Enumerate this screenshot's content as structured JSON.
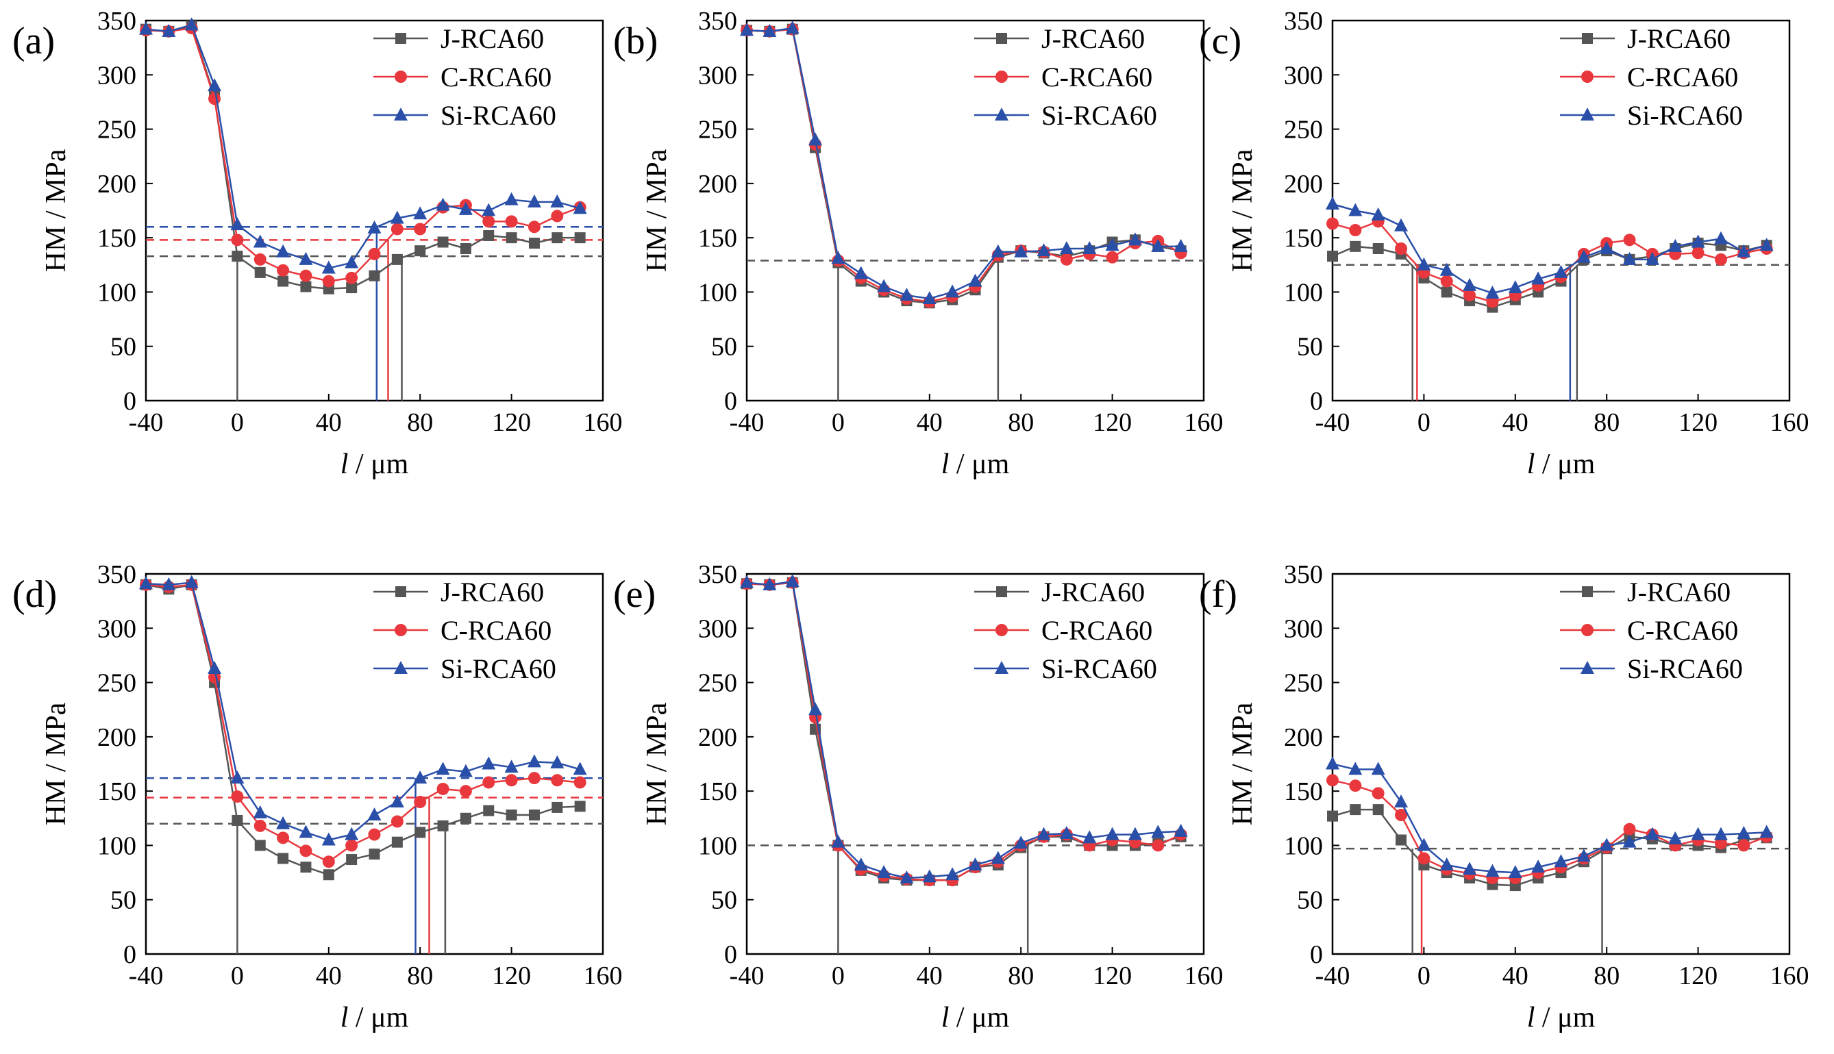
{
  "figure": {
    "series_colors": {
      "J-RCA60": "#555555",
      "C-RCA60": "#e8383d",
      "Si-RCA60": "#2a4fa8"
    },
    "legend": [
      "J-RCA60",
      "C-RCA60",
      "Si-RCA60"
    ]
  },
  "chart_data": [
    {
      "type": "line",
      "panel_label": "(a)",
      "xlabel_italic": "l",
      "xlabel_unit": " / μm",
      "ylabel": "HM / MPa",
      "xlim": [
        -40,
        160
      ],
      "ylim": [
        0,
        350
      ],
      "xticks": [
        -40,
        0,
        40,
        80,
        120,
        160
      ],
      "yticks": [
        0,
        50,
        100,
        150,
        200,
        250,
        300,
        350
      ],
      "x": [
        -40,
        -30,
        -20,
        -10,
        0,
        10,
        20,
        30,
        40,
        50,
        60,
        70,
        80,
        90,
        100,
        110,
        120,
        130,
        140,
        150
      ],
      "series": [
        {
          "name": "J-RCA60",
          "marker": "square",
          "values": [
            342,
            340,
            345,
            280,
            133,
            118,
            110,
            105,
            103,
            104,
            115,
            130,
            138,
            146,
            140,
            152,
            150,
            145,
            150,
            150
          ]
        },
        {
          "name": "C-RCA60",
          "marker": "circle",
          "values": [
            341,
            340,
            343,
            278,
            148,
            130,
            120,
            115,
            110,
            113,
            135,
            158,
            158,
            178,
            180,
            165,
            165,
            160,
            170,
            178
          ]
        },
        {
          "name": "Si-RCA60",
          "marker": "triangle",
          "values": [
            342,
            340,
            346,
            290,
            162,
            146,
            137,
            130,
            122,
            127,
            159,
            168,
            172,
            180,
            176,
            175,
            185,
            183,
            183,
            177
          ]
        }
      ],
      "hlines": [
        {
          "series": "J-RCA60",
          "y": 133
        },
        {
          "series": "C-RCA60",
          "y": 148
        },
        {
          "series": "Si-RCA60",
          "y": 160
        }
      ],
      "vlines": [
        {
          "series": "J-RCA60",
          "x": 0,
          "top": 133
        },
        {
          "series": "Si-RCA60",
          "x": 61,
          "top": 160
        },
        {
          "series": "C-RCA60",
          "x": 66,
          "top": 148
        },
        {
          "series": "J-RCA60",
          "x": 72,
          "top": 133
        }
      ]
    },
    {
      "type": "line",
      "panel_label": "(b)",
      "xlabel_italic": "l",
      "xlabel_unit": " / μm",
      "ylabel": "HM / MPa",
      "xlim": [
        -40,
        160
      ],
      "ylim": [
        0,
        350
      ],
      "xticks": [
        -40,
        0,
        40,
        80,
        120,
        160
      ],
      "yticks": [
        0,
        50,
        100,
        150,
        200,
        250,
        300,
        350
      ],
      "x": [
        -40,
        -30,
        -20,
        -10,
        0,
        10,
        20,
        30,
        40,
        50,
        60,
        70,
        80,
        90,
        100,
        110,
        120,
        130,
        140,
        150
      ],
      "series": [
        {
          "name": "J-RCA60",
          "marker": "square",
          "values": [
            341,
            340,
            342,
            233,
            127,
            110,
            100,
            92,
            90,
            93,
            102,
            132,
            138,
            136,
            133,
            138,
            146,
            148,
            142,
            138
          ]
        },
        {
          "name": "C-RCA60",
          "marker": "circle",
          "values": [
            341,
            340,
            342,
            236,
            129,
            113,
            102,
            94,
            91,
            96,
            105,
            134,
            138,
            137,
            130,
            135,
            132,
            145,
            147,
            136
          ]
        },
        {
          "name": "Si-RCA60",
          "marker": "triangle",
          "values": [
            341,
            340,
            343,
            240,
            131,
            117,
            105,
            97,
            94,
            100,
            110,
            137,
            137,
            138,
            140,
            140,
            143,
            148,
            142,
            142
          ]
        }
      ],
      "hlines": [
        {
          "series": "J-RCA60",
          "y": 129
        }
      ],
      "vlines": [
        {
          "series": "J-RCA60",
          "x": 0,
          "top": 129
        },
        {
          "series": "J-RCA60",
          "x": 70,
          "top": 129
        }
      ]
    },
    {
      "type": "line",
      "panel_label": "(c)",
      "xlabel_italic": "l",
      "xlabel_unit": " / μm",
      "ylabel": "HM / MPa",
      "xlim": [
        -40,
        160
      ],
      "ylim": [
        0,
        350
      ],
      "xticks": [
        -40,
        0,
        40,
        80,
        120,
        160
      ],
      "yticks": [
        0,
        50,
        100,
        150,
        200,
        250,
        300,
        350
      ],
      "x": [
        -40,
        -30,
        -20,
        -10,
        0,
        10,
        20,
        30,
        40,
        50,
        60,
        70,
        80,
        90,
        100,
        110,
        120,
        130,
        140,
        150
      ],
      "series": [
        {
          "name": "J-RCA60",
          "marker": "square",
          "values": [
            133,
            142,
            140,
            135,
            113,
            100,
            92,
            86,
            93,
            100,
            110,
            130,
            138,
            130,
            133,
            140,
            145,
            143,
            138,
            143
          ]
        },
        {
          "name": "C-RCA60",
          "marker": "circle",
          "values": [
            163,
            157,
            165,
            140,
            118,
            110,
            97,
            91,
            97,
            106,
            114,
            135,
            145,
            148,
            135,
            135,
            136,
            130,
            136,
            140
          ]
        },
        {
          "name": "Si-RCA60",
          "marker": "triangle",
          "values": [
            181,
            175,
            171,
            161,
            125,
            120,
            106,
            99,
            104,
            112,
            118,
            132,
            140,
            130,
            130,
            142,
            146,
            149,
            137,
            143
          ]
        }
      ],
      "hlines": [
        {
          "series": "J-RCA60",
          "y": 125
        }
      ],
      "vlines": [
        {
          "series": "J-RCA60",
          "x": -5,
          "top": 125
        },
        {
          "series": "C-RCA60",
          "x": -3,
          "top": 125
        },
        {
          "series": "Si-RCA60",
          "x": 64,
          "top": 125
        },
        {
          "series": "J-RCA60",
          "x": 67,
          "top": 125
        }
      ]
    },
    {
      "type": "line",
      "panel_label": "(d)",
      "xlabel_italic": "l",
      "xlabel_unit": " / μm",
      "ylabel": "HM / MPa",
      "xlim": [
        -40,
        160
      ],
      "ylim": [
        0,
        350
      ],
      "xticks": [
        -40,
        0,
        40,
        80,
        120,
        160
      ],
      "yticks": [
        0,
        50,
        100,
        150,
        200,
        250,
        300,
        350
      ],
      "x": [
        -40,
        -30,
        -20,
        -10,
        0,
        10,
        20,
        30,
        40,
        50,
        60,
        70,
        80,
        90,
        100,
        110,
        120,
        130,
        140,
        150
      ],
      "series": [
        {
          "name": "J-RCA60",
          "marker": "square",
          "values": [
            340,
            336,
            340,
            250,
            123,
            100,
            88,
            80,
            73,
            87,
            92,
            103,
            112,
            118,
            125,
            132,
            128,
            128,
            135,
            136
          ]
        },
        {
          "name": "C-RCA60",
          "marker": "circle",
          "values": [
            340,
            338,
            340,
            255,
            145,
            118,
            107,
            95,
            85,
            100,
            110,
            122,
            140,
            152,
            150,
            158,
            160,
            162,
            160,
            158
          ]
        },
        {
          "name": "Si-RCA60",
          "marker": "triangle",
          "values": [
            341,
            340,
            342,
            263,
            162,
            130,
            120,
            112,
            105,
            110,
            128,
            140,
            162,
            170,
            168,
            175,
            172,
            177,
            176,
            170
          ]
        }
      ],
      "hlines": [
        {
          "series": "J-RCA60",
          "y": 120
        },
        {
          "series": "C-RCA60",
          "y": 144
        },
        {
          "series": "Si-RCA60",
          "y": 162
        }
      ],
      "vlines": [
        {
          "series": "J-RCA60",
          "x": 0,
          "top": 120
        },
        {
          "series": "Si-RCA60",
          "x": 78,
          "top": 162
        },
        {
          "series": "C-RCA60",
          "x": 84,
          "top": 144
        },
        {
          "series": "J-RCA60",
          "x": 91,
          "top": 120
        }
      ]
    },
    {
      "type": "line",
      "panel_label": "(e)",
      "xlabel_italic": "l",
      "xlabel_unit": " / μm",
      "ylabel": "HM / MPa",
      "xlim": [
        -40,
        160
      ],
      "ylim": [
        0,
        350
      ],
      "xticks": [
        -40,
        0,
        40,
        80,
        120,
        160
      ],
      "yticks": [
        0,
        50,
        100,
        150,
        200,
        250,
        300,
        350
      ],
      "x": [
        -40,
        -30,
        -20,
        -10,
        0,
        10,
        20,
        30,
        40,
        50,
        60,
        70,
        80,
        90,
        100,
        110,
        120,
        130,
        140,
        150
      ],
      "series": [
        {
          "name": "J-RCA60",
          "marker": "square",
          "values": [
            341,
            340,
            342,
            207,
            100,
            77,
            70,
            68,
            68,
            68,
            80,
            82,
            98,
            108,
            108,
            100,
            100,
            100,
            102,
            108
          ]
        },
        {
          "name": "C-RCA60",
          "marker": "circle",
          "values": [
            341,
            340,
            342,
            218,
            100,
            78,
            72,
            69,
            68,
            68,
            80,
            85,
            100,
            108,
            110,
            100,
            105,
            103,
            100,
            110
          ]
        },
        {
          "name": "Si-RCA60",
          "marker": "triangle",
          "values": [
            342,
            340,
            343,
            225,
            103,
            82,
            75,
            70,
            71,
            73,
            82,
            88,
            102,
            110,
            111,
            107,
            110,
            110,
            112,
            113
          ]
        }
      ],
      "hlines": [
        {
          "series": "J-RCA60",
          "y": 100
        }
      ],
      "vlines": [
        {
          "series": "J-RCA60",
          "x": 0,
          "top": 100
        },
        {
          "series": "J-RCA60",
          "x": 83,
          "top": 100
        }
      ]
    },
    {
      "type": "line",
      "panel_label": "(f)",
      "xlabel_italic": "l",
      "xlabel_unit": " / μm",
      "ylabel": "HM / MPa",
      "xlim": [
        -40,
        160
      ],
      "ylim": [
        0,
        350
      ],
      "xticks": [
        -40,
        0,
        40,
        80,
        120,
        160
      ],
      "yticks": [
        0,
        50,
        100,
        150,
        200,
        250,
        300,
        350
      ],
      "x": [
        -40,
        -30,
        -20,
        -10,
        0,
        10,
        20,
        30,
        40,
        50,
        60,
        70,
        80,
        90,
        100,
        110,
        120,
        130,
        140,
        150
      ],
      "series": [
        {
          "name": "J-RCA60",
          "marker": "square",
          "values": [
            127,
            133,
            133,
            105,
            82,
            75,
            70,
            64,
            63,
            70,
            75,
            85,
            97,
            108,
            106,
            100,
            100,
            98,
            105,
            107
          ]
        },
        {
          "name": "C-RCA60",
          "marker": "circle",
          "values": [
            160,
            155,
            148,
            128,
            88,
            78,
            74,
            70,
            70,
            75,
            80,
            88,
            98,
            115,
            110,
            100,
            105,
            102,
            100,
            108
          ]
        },
        {
          "name": "Si-RCA60",
          "marker": "triangle",
          "values": [
            175,
            170,
            170,
            140,
            100,
            82,
            78,
            76,
            75,
            80,
            85,
            90,
            100,
            103,
            110,
            106,
            110,
            110,
            111,
            112
          ]
        }
      ],
      "hlines": [
        {
          "series": "J-RCA60",
          "y": 97
        }
      ],
      "vlines": [
        {
          "series": "J-RCA60",
          "x": -5,
          "top": 97
        },
        {
          "series": "C-RCA60",
          "x": -1,
          "top": 97
        },
        {
          "series": "J-RCA60",
          "x": 78,
          "top": 97
        }
      ]
    }
  ]
}
